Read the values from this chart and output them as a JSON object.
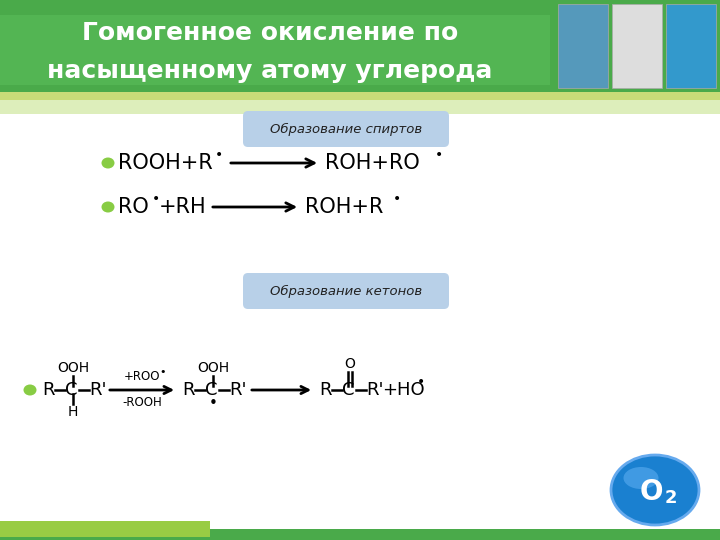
{
  "title_line1": "Гомогенное окисление по",
  "title_line2": "насыщенному атому углерода",
  "title_bg_color": "#4aaa4a",
  "title_bg_light": "#a0c878",
  "title_stripe_color": "#c8dc78",
  "title_text_color": "#ffffff",
  "content_bg_color": "#ffffff",
  "box1_label": "Образование спиртов",
  "box2_label": "Образование кетонов",
  "box_bg_color": "#b8d0e8",
  "box_text_color": "#222222",
  "bullet_color": "#88cc44",
  "footer_color1": "#4aaa4a",
  "footer_color2": "#99cc44",
  "o2_bubble_color": "#1a80d0"
}
